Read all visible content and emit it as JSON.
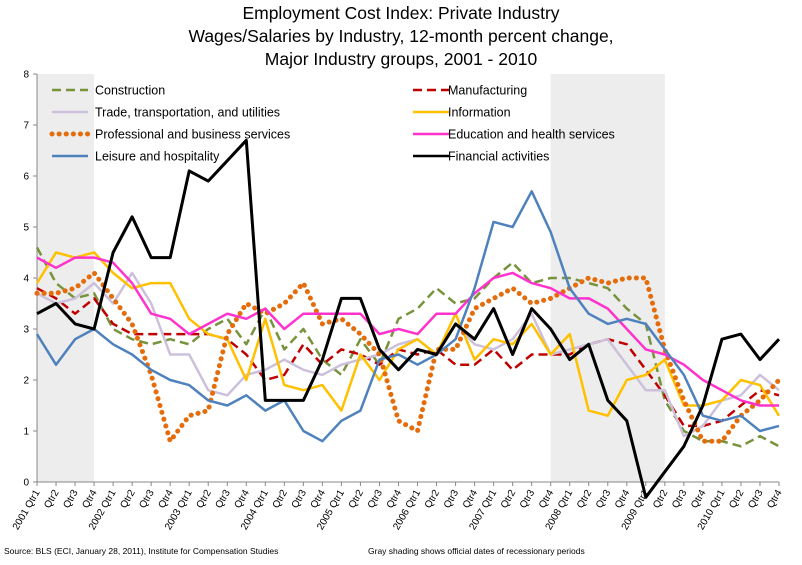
{
  "chart_data": {
    "type": "line",
    "title": [
      "Employment Cost Index:  Private Industry",
      "Wages/Salaries by Industry, 12-month percent change,",
      "Major  Industry groups, 2001 - 2010"
    ],
    "xlabel": "",
    "ylabel": "",
    "ylim": [
      0,
      8
    ],
    "yticks": [
      0,
      1,
      2,
      3,
      4,
      5,
      6,
      7,
      8
    ],
    "categories": [
      "2001 Qtr1",
      "Qtr2",
      "Qtr3",
      "Qtr4",
      "2002 Qtr1",
      "Qtr2",
      "Qtr3",
      "Qtr4",
      "2003 Qtr1",
      "Qtr2",
      "Qtr3",
      "Qtr4",
      "2004 Qtr1",
      "Qtr2",
      "Qtr3",
      "Qtr4",
      "2005 Qtr1",
      "Qtr2",
      "Qtr3",
      "Qtr4",
      "2006 Qtr1",
      "Qtr2",
      "Qtr3",
      "Qtr4",
      "2007 Qtr1",
      "Qtr2",
      "Qtr3",
      "Qtr4",
      "2008 Qtr1",
      "Qtr2",
      "Qtr3",
      "Qtr4",
      "2009 Qtr1",
      "Qtr2",
      "Qtr3",
      "Qtr4",
      "2010 Qtr1",
      "Qtr2",
      "Qtr3",
      "Qtr4"
    ],
    "recession_shading": [
      [
        0,
        3
      ],
      [
        27,
        33
      ]
    ],
    "series": [
      {
        "name": "Construction",
        "color": "#77933C",
        "style": "dashed",
        "values": [
          4.6,
          3.9,
          3.6,
          3.7,
          3.0,
          2.8,
          2.7,
          2.8,
          2.7,
          3.0,
          3.2,
          2.7,
          3.4,
          2.6,
          3.0,
          2.4,
          2.1,
          2.8,
          2.3,
          3.2,
          3.4,
          3.8,
          3.5,
          3.6,
          4.0,
          4.3,
          3.9,
          4.0,
          4.0,
          3.9,
          3.8,
          3.4,
          3.1,
          1.6,
          1.0,
          0.8,
          0.8,
          0.7,
          0.9,
          0.7
        ]
      },
      {
        "name": "Manufacturing",
        "color": "#C00000",
        "style": "dashed",
        "values": [
          3.8,
          3.6,
          3.3,
          3.6,
          3.1,
          2.9,
          2.9,
          2.9,
          2.9,
          2.9,
          2.8,
          2.5,
          2.0,
          2.1,
          2.7,
          2.3,
          2.6,
          2.5,
          2.3,
          2.6,
          2.5,
          2.6,
          2.3,
          2.3,
          2.6,
          2.2,
          2.5,
          2.5,
          2.5,
          2.7,
          2.8,
          2.7,
          2.2,
          1.7,
          1.1,
          1.1,
          1.2,
          1.5,
          1.8,
          1.7
        ]
      },
      {
        "name": "Trade, transportation, and utilities",
        "color": "#CCC0DA",
        "style": "solid",
        "values": [
          3.7,
          3.5,
          3.6,
          3.9,
          3.5,
          4.1,
          3.5,
          2.5,
          2.5,
          1.8,
          1.7,
          2.1,
          2.2,
          2.4,
          2.2,
          2.1,
          2.3,
          2.4,
          2.5,
          2.7,
          2.8,
          2.5,
          3.1,
          2.7,
          2.6,
          2.8,
          3.3,
          2.5,
          2.6,
          2.7,
          2.8,
          2.3,
          1.8,
          1.8,
          0.9,
          1.1,
          1.6,
          1.7,
          2.1,
          1.8
        ]
      },
      {
        "name": "Information",
        "color": "#FFC000",
        "style": "solid",
        "values": [
          3.9,
          4.5,
          4.4,
          4.5,
          4.1,
          3.8,
          3.9,
          3.9,
          3.2,
          2.9,
          2.8,
          2.0,
          3.2,
          1.9,
          1.8,
          1.9,
          1.4,
          2.5,
          2.0,
          2.6,
          2.8,
          2.5,
          3.3,
          2.4,
          2.8,
          2.7,
          3.1,
          2.5,
          2.9,
          1.4,
          1.3,
          2.0,
          2.1,
          2.4,
          1.5,
          1.5,
          1.6,
          2.0,
          1.9,
          1.3
        ]
      },
      {
        "name": "Professional and business services",
        "color": "#E46C0A",
        "style": "dotted",
        "values": [
          3.7,
          3.7,
          3.8,
          4.1,
          3.6,
          3.1,
          2.1,
          0.8,
          1.3,
          1.4,
          2.9,
          3.5,
          3.3,
          3.5,
          3.9,
          3.1,
          3.2,
          2.9,
          2.5,
          1.2,
          1.0,
          2.6,
          2.6,
          3.4,
          3.6,
          3.8,
          3.5,
          3.6,
          3.8,
          4.0,
          3.9,
          4.0,
          4.0,
          2.6,
          1.6,
          0.8,
          0.8,
          1.3,
          1.6,
          2.0
        ]
      },
      {
        "name": "Education and health services",
        "color": "#FF33CC",
        "style": "solid",
        "values": [
          4.4,
          4.2,
          4.4,
          4.4,
          4.3,
          3.9,
          3.3,
          3.2,
          2.9,
          3.1,
          3.3,
          3.2,
          3.4,
          3.0,
          3.3,
          3.3,
          3.3,
          3.3,
          2.9,
          3.0,
          2.9,
          3.3,
          3.3,
          3.7,
          4.0,
          4.1,
          3.9,
          3.8,
          3.6,
          3.6,
          3.4,
          3.0,
          2.6,
          2.5,
          2.3,
          2.0,
          1.8,
          1.6,
          1.5,
          1.5
        ]
      },
      {
        "name": "Leisure and hospitality",
        "color": "#4F81BD",
        "style": "solid",
        "values": [
          2.9,
          2.3,
          2.8,
          3.0,
          2.7,
          2.5,
          2.2,
          2.0,
          1.9,
          1.6,
          1.5,
          1.7,
          1.4,
          1.6,
          1.0,
          0.8,
          1.2,
          1.4,
          2.4,
          2.5,
          2.3,
          2.5,
          2.8,
          3.8,
          5.1,
          5.0,
          5.7,
          4.9,
          3.8,
          3.3,
          3.1,
          3.2,
          3.1,
          2.6,
          2.1,
          1.3,
          1.2,
          1.3,
          1.0,
          1.1
        ]
      },
      {
        "name": "Financial activities",
        "color": "#000000",
        "style": "solid",
        "values": [
          3.3,
          3.5,
          3.1,
          3.0,
          4.5,
          5.2,
          4.4,
          4.4,
          6.1,
          5.9,
          6.3,
          6.7,
          1.6,
          1.6,
          1.6,
          2.4,
          3.6,
          3.6,
          2.6,
          2.2,
          2.6,
          2.5,
          3.1,
          2.8,
          3.4,
          2.5,
          3.4,
          3.0,
          2.4,
          2.7,
          1.6,
          1.2,
          -0.3,
          0.2,
          0.7,
          1.5,
          2.8,
          2.9,
          2.4,
          2.8
        ]
      }
    ]
  },
  "footer": {
    "source": "Source: BLS (ECI, January 28, 2011),  Institute for Compensation Studies",
    "note": "Gray shading shows official dates of recessionary periods"
  }
}
